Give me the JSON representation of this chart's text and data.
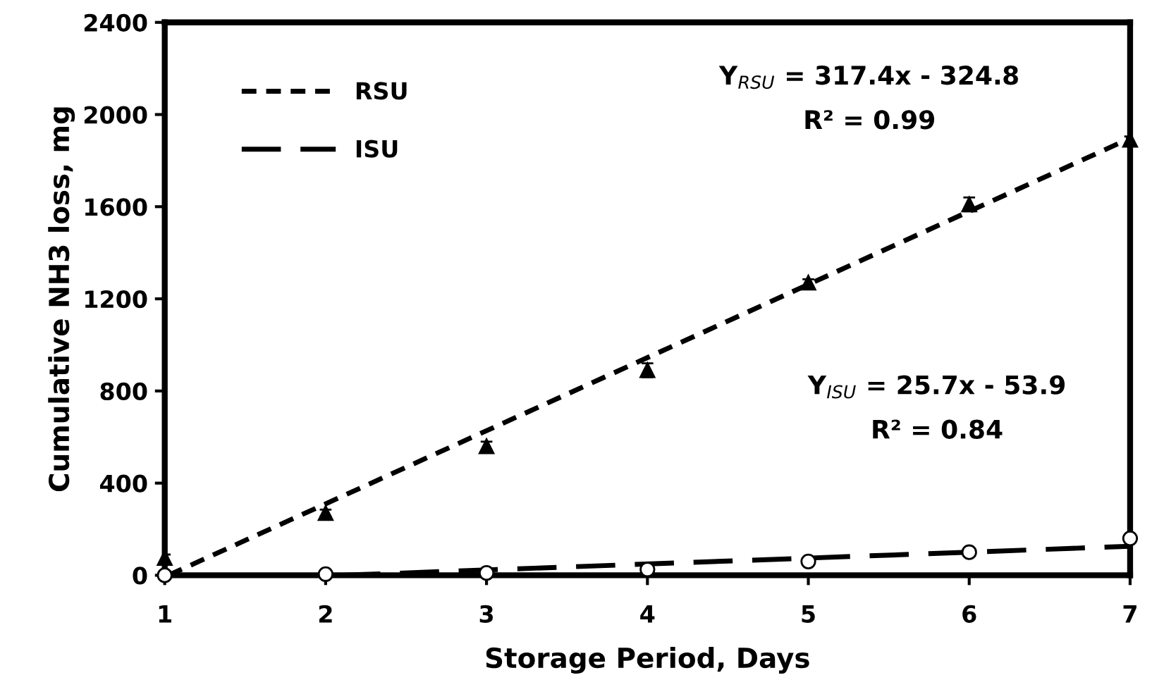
{
  "chart_data": {
    "type": "scatter",
    "xlabel": "Storage Period, Days",
    "ylabel": "Cumulative NH3 loss, mg",
    "x": [
      1,
      2,
      3,
      4,
      5,
      6,
      7
    ],
    "series": [
      {
        "color": "#000000",
        "marker": "triangle",
        "values": [
          75,
          270,
          560,
          890,
          1270,
          1610,
          1890
        ],
        "errors": [
          15,
          15,
          20,
          30,
          15,
          30,
          15
        ]
      },
      {
        "color": "#000000",
        "marker": "circle",
        "values": [
          0,
          5,
          10,
          25,
          60,
          100,
          160
        ]
      },
      {
        "type": "line",
        "name": "RSU",
        "color": "#000000",
        "line_style": "dotted",
        "x": [
          1.023,
          7
        ],
        "values": [
          0,
          1897
        ]
      },
      {
        "type": "line",
        "name": "ISU",
        "color": "#000000",
        "line_style": "dashed",
        "x": [
          2.097,
          7
        ],
        "values": [
          0,
          126
        ]
      }
    ],
    "xlim": [
      1,
      7
    ],
    "xticks": [
      1,
      2,
      3,
      4,
      5,
      6,
      7
    ],
    "ylim": [
      0,
      2400
    ],
    "yticks": [
      0,
      400,
      800,
      1200,
      1600,
      2000,
      2400
    ],
    "grid": false,
    "legend": "top left",
    "annotations": [
      "Y$_{RSU}$ = 317.4x - 324.8",
      "R² = 0.99",
      "Y$_{ISU}$ = 25.7x - 53.9",
      "R² = 0.84"
    ]
  }
}
